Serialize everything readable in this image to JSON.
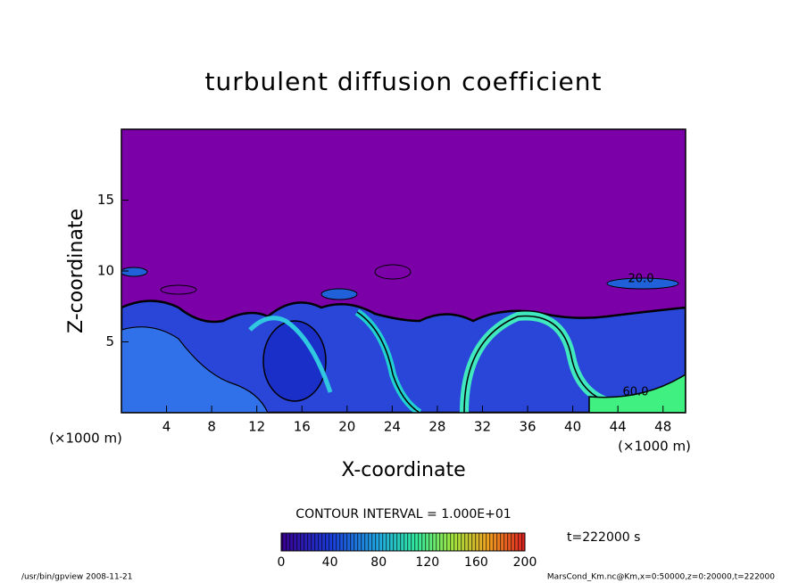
{
  "chart_data": {
    "type": "contour",
    "title": "turbulent diffusion coefficient",
    "xlabel": "X-coordinate",
    "ylabel": "Z-coordinate",
    "xunit": "(×1000 m)",
    "yunit": "(×1000 m)",
    "xlim": [
      0,
      50
    ],
    "ylim": [
      0,
      20
    ],
    "xticks": [
      4,
      8,
      12,
      16,
      20,
      24,
      28,
      32,
      36,
      40,
      44,
      48
    ],
    "yticks": [
      5,
      10,
      15
    ],
    "annotations": [
      "20.0",
      "60.0"
    ],
    "contour_interval": "CONTOUR INTERVAL = 1.000E+01",
    "time": "t=222000 s",
    "colorbar": {
      "lim": [
        0,
        200
      ],
      "ticks": [
        0,
        40,
        80,
        120,
        160,
        200
      ]
    },
    "footer_left": "/usr/bin/gpview   2008-11-21",
    "footer_right": "MarsCond_Km.nc@Km,x=0:50000,z=0:20000,t=222000"
  }
}
